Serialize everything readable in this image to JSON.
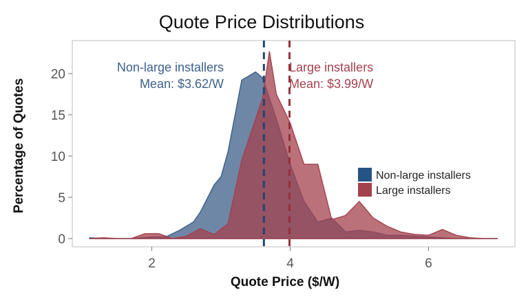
{
  "chart_data": {
    "type": "area",
    "title": "Quote Price Distributions",
    "xlabel": "Quote Price ($/W)",
    "ylabel": "Percentage of Quotes",
    "xlim": [
      0.85,
      7.25
    ],
    "ylim": [
      -1.0,
      24.0
    ],
    "xticks": [
      2,
      4,
      6
    ],
    "yticks": [
      0,
      5,
      10,
      15,
      20
    ],
    "x_tick_labels": [
      "2",
      "4",
      "6"
    ],
    "y_tick_labels": [
      "0",
      "5",
      "10",
      "15",
      "20"
    ],
    "grid": false,
    "legend_position": "right",
    "legend": [
      "Non-large installers",
      "Large installers"
    ],
    "series": [
      {
        "name": "Non-large installers",
        "color": "#3d5f8a",
        "mean": 3.62,
        "mean_label": "Mean: $3.62/W",
        "annotation": "Non-large installers",
        "x": [
          1.1,
          1.4,
          1.7,
          2.0,
          2.2,
          2.4,
          2.6,
          2.7,
          2.9,
          3.0,
          3.1,
          3.3,
          3.5,
          3.6,
          3.8,
          4.0,
          4.2,
          4.4,
          4.6,
          4.8,
          5.0,
          5.2,
          5.4,
          5.6,
          5.8,
          6.0,
          6.2,
          6.4,
          6.6,
          6.8,
          7.0
        ],
        "values": [
          0.1,
          0.0,
          0.0,
          0.2,
          0.2,
          1.0,
          2.0,
          3.2,
          6.5,
          7.5,
          10.5,
          19.2,
          20.2,
          19.5,
          14.5,
          9.0,
          4.5,
          2.0,
          2.5,
          0.8,
          1.0,
          0.8,
          0.4,
          0.4,
          0.3,
          0.2,
          0.1,
          0.0,
          0.0,
          0.0,
          0.0
        ]
      },
      {
        "name": "Large installers",
        "color": "#a4414d",
        "mean": 3.99,
        "mean_label": "Mean: $3.99/W",
        "annotation": "Large installers",
        "x": [
          1.1,
          1.3,
          1.5,
          1.7,
          1.9,
          2.1,
          2.3,
          2.5,
          2.7,
          2.9,
          3.1,
          3.3,
          3.5,
          3.6,
          3.7,
          3.8,
          4.0,
          4.2,
          4.4,
          4.6,
          4.8,
          5.0,
          5.2,
          5.4,
          5.6,
          5.8,
          6.0,
          6.2,
          6.4,
          6.6,
          6.8,
          7.0
        ],
        "values": [
          0.0,
          0.1,
          0.0,
          0.0,
          0.6,
          0.6,
          0.0,
          0.3,
          1.2,
          0.5,
          1.8,
          9.5,
          14.5,
          17.0,
          22.7,
          17.5,
          14.0,
          9.0,
          9.0,
          2.3,
          2.8,
          4.5,
          2.5,
          1.5,
          0.8,
          0.5,
          0.4,
          1.1,
          0.4,
          0.1,
          0.0,
          0.0
        ]
      }
    ]
  }
}
